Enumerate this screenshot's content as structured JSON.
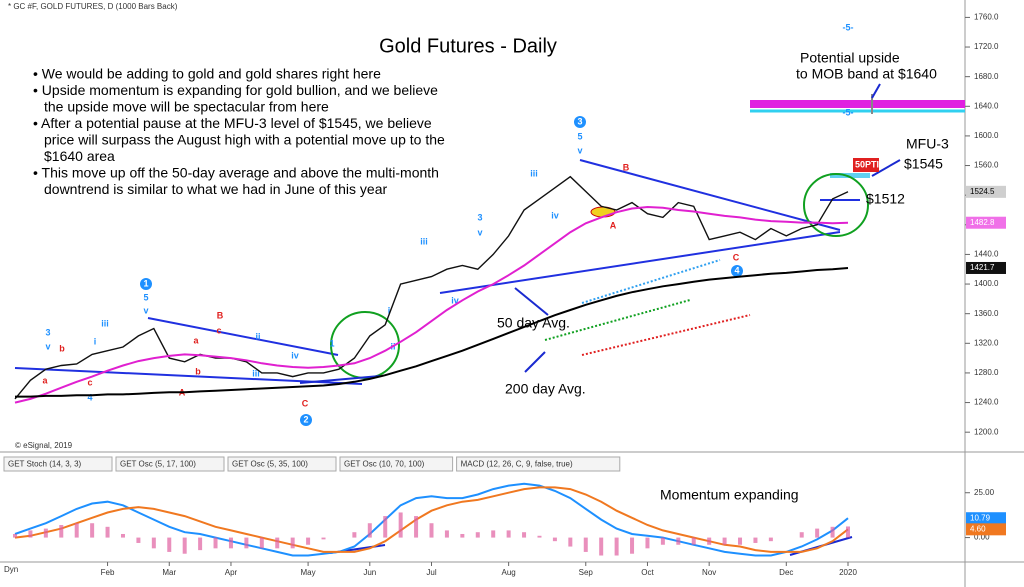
{
  "header": "* GC #F, GOLD FUTURES, D (1000 Bars Back)",
  "copyright": "© eSignal, 2019",
  "dyn": "Dyn",
  "tabs": [
    "GET Stoch (14, 3, 3)",
    "GET Osc (5, 17, 100)",
    "GET Osc (5, 35, 100)",
    "GET Osc (10, 70, 100)",
    "MACD (12, 26, C, 9, false, true)"
  ],
  "notes": {
    "bullets": [
      [
        "• We would be adding to gold and gold shares right here"
      ],
      [
        "• Upside momentum is expanding for gold bullion, and we believe",
        "the upside move will be spectacular from here"
      ],
      [
        "• After a potential pause at the MFU-3 level of $1545, we believe",
        "price will surpass the August high with a potential move up to the",
        "$1640 area"
      ],
      [
        "• This move up off the 50-day average and above the multi-month",
        "downtrend is similar to what we had in June of this year"
      ]
    ],
    "upside": [
      "Potential upside",
      "to MOB band at $1640"
    ],
    "mfu": [
      "MFU-3",
      "$1545"
    ],
    "level": "$1512",
    "pti": "50PTI",
    "ma50": "50 day Avg.",
    "ma200": "200 day Avg.",
    "momentum": "Momentum expanding"
  },
  "wave_labels": [
    {
      "text": "3",
      "color": "#1e90ff"
    },
    {
      "text": "v",
      "color": "#1e90ff"
    },
    {
      "text": "b",
      "color": "#e0201e"
    },
    {
      "text": "iii",
      "color": "#1e90ff"
    },
    {
      "text": "i",
      "color": "#1e90ff"
    },
    {
      "text": "a",
      "color": "#e0201e"
    },
    {
      "text": "c",
      "color": "#e0201e"
    },
    {
      "text": "4",
      "color": "#1e90ff"
    },
    {
      "text": "1",
      "color": "#1e90ff",
      "circled": true
    },
    {
      "text": "5",
      "color": "#1e90ff"
    },
    {
      "text": "v",
      "color": "#1e90ff"
    },
    {
      "text": "B",
      "color": "#e0201e"
    },
    {
      "text": "c",
      "color": "#e0201e"
    },
    {
      "text": "a",
      "color": "#e0201e"
    },
    {
      "text": "b",
      "color": "#e0201e"
    },
    {
      "text": "A",
      "color": "#e0201e"
    },
    {
      "text": "ii",
      "color": "#1e90ff"
    },
    {
      "text": "iii",
      "color": "#1e90ff"
    },
    {
      "text": "iv",
      "color": "#1e90ff"
    },
    {
      "text": "1",
      "color": "#1e90ff"
    },
    {
      "text": "C",
      "color": "#e0201e"
    },
    {
      "text": "2",
      "color": "#1e90ff",
      "circled": true
    },
    {
      "text": "i",
      "color": "#1e90ff"
    },
    {
      "text": "ii",
      "color": "#1e90ff"
    },
    {
      "text": "iii",
      "color": "#1e90ff"
    },
    {
      "text": "iv",
      "color": "#1e90ff"
    },
    {
      "text": "3",
      "color": "#1e90ff"
    },
    {
      "text": "v",
      "color": "#1e90ff"
    },
    {
      "text": "iii",
      "color": "#1e90ff"
    },
    {
      "text": "iv",
      "color": "#1e90ff"
    },
    {
      "text": "3",
      "color": "#1e90ff",
      "circled": true
    },
    {
      "text": "5",
      "color": "#1e90ff"
    },
    {
      "text": "v",
      "color": "#1e90ff"
    },
    {
      "text": "B",
      "color": "#e0201e"
    },
    {
      "text": "A",
      "color": "#e0201e"
    },
    {
      "text": "C",
      "color": "#e0201e"
    },
    {
      "text": "4",
      "color": "#1e90ff",
      "circled": true
    },
    {
      "text": "-5-",
      "color": "#1e90ff"
    },
    {
      "text": "-5-",
      "color": "#1e90ff"
    }
  ],
  "chart_data": [
    {
      "type": "line",
      "title": "Gold Futures - Daily",
      "categories": [
        null,
        null,
        null,
        null,
        null,
        null,
        "Feb",
        null,
        null,
        null,
        "Mar",
        null,
        null,
        null,
        "Apr",
        null,
        null,
        null,
        null,
        "May",
        null,
        null,
        null,
        "Jun",
        null,
        null,
        null,
        "Jul",
        null,
        null,
        null,
        null,
        "Aug",
        null,
        null,
        null,
        null,
        "Sep",
        null,
        null,
        null,
        "Oct",
        null,
        null,
        null,
        "Nov",
        null,
        null,
        null,
        null,
        "Dec",
        null,
        null,
        null,
        "2020"
      ],
      "series": [
        {
          "name": "* GC #F, GOLD FUTURES, D (1000 Bars Back)",
          "color": "#111111",
          "values": [
            1245,
            1270,
            1285,
            1290,
            1292,
            1305,
            1310,
            1315,
            1330,
            1340,
            1300,
            1295,
            1305,
            1300,
            1300,
            1295,
            1280,
            1280,
            1275,
            1280,
            1280,
            1285,
            1300,
            1330,
            1345,
            1400,
            1405,
            1410,
            1420,
            1425,
            1420,
            1440,
            1465,
            1500,
            1515,
            1530,
            1545,
            1525,
            1505,
            1500,
            1510,
            1495,
            1490,
            1510,
            1505,
            1460,
            1465,
            1470,
            1460,
            1475,
            1465,
            1475,
            1480,
            1515,
            1524.5
          ]
        },
        {
          "name": "50 day Avg.",
          "color": "#e020d0",
          "values": [
            1240,
            1245,
            1252,
            1260,
            1268,
            1275,
            1283,
            1290,
            1296,
            1300,
            1303,
            1305,
            1304,
            1302,
            1300,
            1297,
            1293,
            1290,
            1288,
            1287,
            1288,
            1290,
            1293,
            1300,
            1310,
            1322,
            1335,
            1350,
            1365,
            1378,
            1390,
            1400,
            1412,
            1425,
            1440,
            1455,
            1470,
            1482,
            1490,
            1497,
            1502,
            1504,
            1503,
            1500,
            1498,
            1495,
            1492,
            1490,
            1487,
            1485,
            1484,
            1483,
            1483,
            1482,
            1482.8
          ]
        },
        {
          "name": "200 day Avg.",
          "color": "#000000",
          "values": [
            1248,
            1248,
            1249,
            1249,
            1250,
            1250,
            1251,
            1251,
            1252,
            1253,
            1254,
            1254,
            1255,
            1256,
            1257,
            1258,
            1259,
            1260,
            1261,
            1262,
            1263,
            1265,
            1268,
            1272,
            1277,
            1283,
            1289,
            1296,
            1303,
            1310,
            1318,
            1326,
            1334,
            1342,
            1350,
            1358,
            1365,
            1372,
            1378,
            1384,
            1389,
            1393,
            1397,
            1400,
            1403,
            1406,
            1408,
            1410,
            1412,
            1414,
            1415,
            1417,
            1419,
            1420,
            1421.7
          ]
        }
      ],
      "ylim": [
        1180,
        1770
      ],
      "yticks": [
        {
          "value": 1200,
          "label": "1200.0"
        },
        {
          "value": 1240,
          "label": "1240.0"
        },
        {
          "value": 1280,
          "label": "1280.0"
        },
        {
          "value": 1320,
          "label": "1320.0"
        },
        {
          "value": 1360,
          "label": "1360.0"
        },
        {
          "value": 1400,
          "label": "1400.0"
        },
        {
          "value": 1440,
          "label": "1440.0"
        },
        {
          "value": 1480,
          "label": "1480.0"
        },
        {
          "value": 1520,
          "label": "1520.0"
        },
        {
          "value": 1560,
          "label": "1560.0"
        },
        {
          "value": 1600,
          "label": "1600.0"
        },
        {
          "value": 1640,
          "label": "1640.0"
        },
        {
          "value": 1680,
          "label": "1680.0"
        },
        {
          "value": 1720,
          "label": "1720.0"
        },
        {
          "value": 1760,
          "label": "1760.0"
        }
      ],
      "price_tags": [
        {
          "value": 1524.5,
          "label": "1524.5",
          "color": "#cfcfcf"
        },
        {
          "value": 1482.8,
          "label": "1482.8",
          "color": "#f070e8"
        },
        {
          "value": 1421.7,
          "label": "1421.7",
          "color": "#111111"
        }
      ],
      "grid": false
    },
    {
      "type": "line",
      "series": [
        {
          "color": "#1e90ff",
          "values": [
            2,
            5,
            8,
            12,
            16,
            19,
            20,
            18,
            14,
            10,
            6,
            3,
            2,
            0,
            -2,
            -4,
            -6,
            -8,
            -10,
            -10,
            -9,
            -8,
            -5,
            2,
            10,
            18,
            22,
            23,
            22,
            22,
            24,
            27,
            29,
            30,
            29,
            26,
            22,
            16,
            10,
            5,
            2,
            1,
            0,
            -2,
            -4,
            -6,
            -8,
            -9,
            -10,
            -10,
            -8,
            -5,
            -1,
            4,
            10.79
          ]
        },
        {
          "color": "#f07820",
          "values": [
            0,
            1,
            3,
            5,
            8,
            11,
            14,
            16,
            17,
            16,
            14,
            12,
            9,
            6,
            4,
            2,
            0,
            -2,
            -4,
            -6,
            -8,
            -8,
            -8,
            -6,
            -2,
            4,
            10,
            15,
            18,
            20,
            21,
            23,
            25,
            27,
            28,
            28,
            27,
            24,
            20,
            15,
            11,
            7,
            4,
            2,
            0,
            -2,
            -4,
            -5,
            -7,
            -8,
            -8,
            -8,
            -6,
            -2,
            4.6
          ]
        },
        {
          "type": "bar",
          "color": "#e060a0",
          "values": [
            2,
            4,
            5,
            7,
            8,
            8,
            6,
            2,
            -3,
            -6,
            -8,
            -9,
            -7,
            -6,
            -6,
            -6,
            -6,
            -6,
            -6,
            -4,
            -1,
            0,
            3,
            8,
            12,
            14,
            12,
            8,
            4,
            2,
            3,
            4,
            4,
            3,
            1,
            -2,
            -5,
            -8,
            -10,
            -10,
            -9,
            -6,
            -4,
            -4,
            -4,
            -4,
            -4,
            -4,
            -3,
            -2,
            0,
            3,
            5,
            6,
            6.19
          ]
        }
      ],
      "ylim": [
        -12.5,
        36
      ],
      "yticks": [
        {
          "value": 25,
          "label": "25.00"
        },
        {
          "value": 0,
          "label": "0.00"
        }
      ],
      "price_tags": [
        {
          "value": 10.79,
          "label": "10.79",
          "color": "#1e90ff"
        },
        {
          "value": 4.6,
          "label": "4.60",
          "color": "#f07820"
        }
      ],
      "grid": false
    }
  ]
}
